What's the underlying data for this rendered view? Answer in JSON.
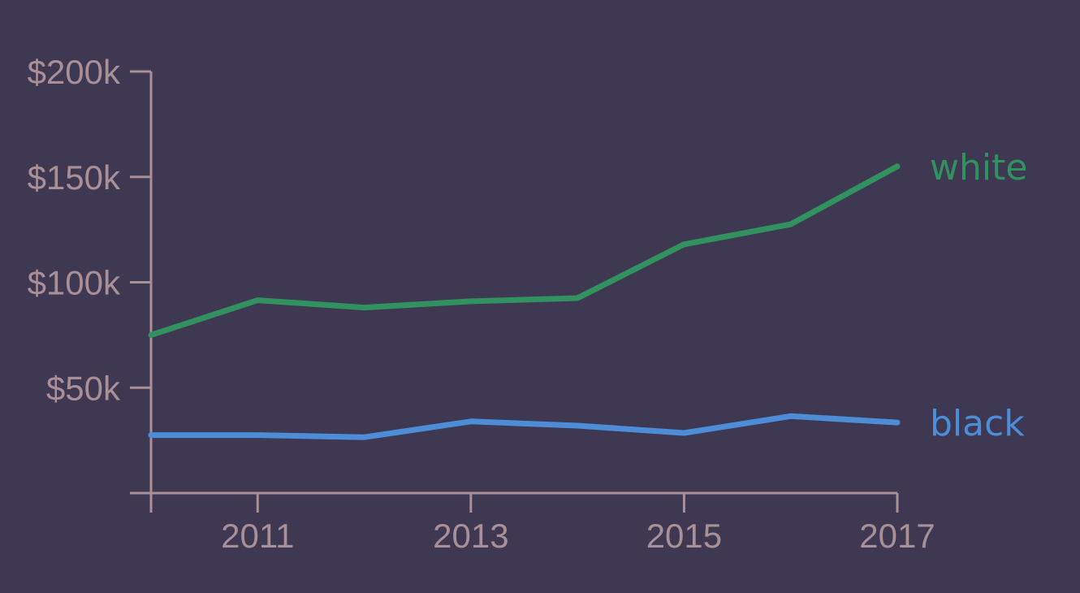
{
  "chart_data": {
    "type": "line",
    "x": [
      2010,
      2011,
      2012,
      2013,
      2014,
      2015,
      2016,
      2017
    ],
    "x_tick_labels": [
      "2011",
      "2013",
      "2015",
      "2017"
    ],
    "y_tick_labels": [
      "$50k",
      "$100k",
      "$150k",
      "$200k"
    ],
    "ylim": [
      0,
      200000
    ],
    "xlim": [
      2010,
      2017
    ],
    "grid": false,
    "legend": "direct labels at line ends",
    "series": [
      {
        "name": "white",
        "color": "#31925f",
        "values": [
          75000,
          91500,
          88000,
          91000,
          92500,
          118000,
          127500,
          155000
        ]
      },
      {
        "name": "black",
        "color": "#4d8dd8",
        "values": [
          27500,
          27500,
          26500,
          34000,
          32000,
          28500,
          36500,
          33500
        ]
      }
    ],
    "axis_color": "#a99096",
    "background": "#3e3852"
  }
}
